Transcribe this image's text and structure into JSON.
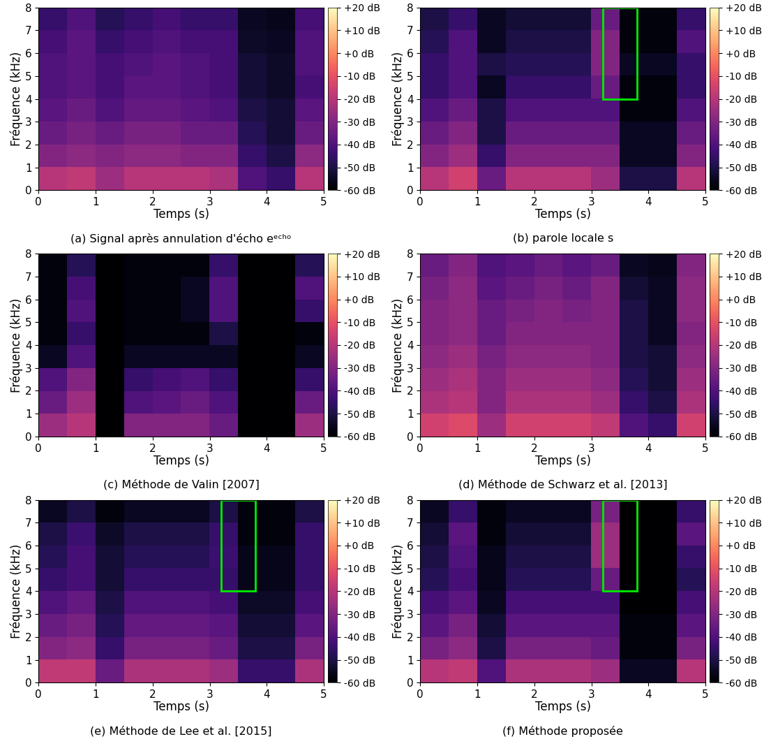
{
  "chart_data": [
    {
      "type": "heatmap",
      "title": "(a) Signal après annulation d'écho eᵉᶜʰᵒ",
      "x_label": "Temps (s)",
      "y_label": "Fréquence (kHz)",
      "xlim": [
        0,
        5
      ],
      "ylim": [
        0,
        8
      ],
      "xticks": [
        0,
        1,
        2,
        3,
        4,
        5
      ],
      "yticks": [
        0,
        1,
        2,
        3,
        4,
        5,
        6,
        7,
        8
      ],
      "color": "magma",
      "cells": [
        [
          -20,
          -18,
          -25,
          -20,
          -20,
          -20,
          -22,
          -40,
          -45,
          -20
        ],
        [
          -30,
          -28,
          -30,
          -28,
          -28,
          -30,
          -30,
          -45,
          -50,
          -28
        ],
        [
          -35,
          -32,
          -35,
          -32,
          -32,
          -35,
          -35,
          -48,
          -52,
          -35
        ],
        [
          -38,
          -35,
          -40,
          -36,
          -36,
          -38,
          -40,
          -50,
          -52,
          -38
        ],
        [
          -40,
          -38,
          -42,
          -38,
          -38,
          -40,
          -42,
          -52,
          -54,
          -42
        ],
        [
          -40,
          -38,
          -42,
          -40,
          -38,
          -40,
          -42,
          -52,
          -54,
          -40
        ],
        [
          -42,
          -38,
          -45,
          -42,
          -40,
          -42,
          -42,
          -54,
          -55,
          -40
        ],
        [
          -45,
          -40,
          -48,
          -45,
          -42,
          -45,
          -45,
          -55,
          -56,
          -42
        ]
      ],
      "colorbar_range": [
        -60,
        20
      ],
      "colorbar_ticks": [
        {
          "value": 20,
          "label": "+20 dB"
        },
        {
          "value": 10,
          "label": "+10 dB"
        },
        {
          "value": 0,
          "label": "+0 dB"
        },
        {
          "value": -10,
          "label": "-10 dB"
        },
        {
          "value": -20,
          "label": "-20 dB"
        },
        {
          "value": -30,
          "label": "-30 dB"
        },
        {
          "value": -40,
          "label": "-40 dB"
        },
        {
          "value": -50,
          "label": "-50 dB"
        },
        {
          "value": -60,
          "label": "-60 dB"
        }
      ]
    },
    {
      "type": "heatmap",
      "title": "(b) parole locale s",
      "x_label": "Temps (s)",
      "y_label": "Fréquence (kHz)",
      "xlim": [
        0,
        5
      ],
      "ylim": [
        0,
        8
      ],
      "xticks": [
        0,
        1,
        2,
        3,
        4,
        5
      ],
      "yticks": [
        0,
        1,
        2,
        3,
        4,
        5,
        6,
        7,
        8
      ],
      "color": "magma",
      "cells": [
        [
          -20,
          -15,
          -35,
          -20,
          -20,
          -20,
          -25,
          -50,
          -50,
          -20
        ],
        [
          -30,
          -25,
          -45,
          -30,
          -30,
          -30,
          -30,
          -55,
          -55,
          -30
        ],
        [
          -35,
          -30,
          -50,
          -35,
          -35,
          -35,
          -35,
          -55,
          -55,
          -35
        ],
        [
          -40,
          -35,
          -50,
          -40,
          -40,
          -40,
          -40,
          -58,
          -58,
          -40
        ],
        [
          -45,
          -40,
          -55,
          -45,
          -45,
          -45,
          -35,
          -58,
          -58,
          -45
        ],
        [
          -45,
          -40,
          -50,
          -48,
          -48,
          -48,
          -30,
          -55,
          -55,
          -45
        ],
        [
          -48,
          -40,
          -55,
          -50,
          -50,
          -50,
          -30,
          -58,
          -58,
          -40
        ],
        [
          -50,
          -45,
          -55,
          -52,
          -52,
          -52,
          -35,
          -58,
          -58,
          -45
        ]
      ],
      "highlight": {
        "x": [
          3.2,
          3.8
        ],
        "y": [
          4,
          8
        ],
        "color": "#00e000"
      },
      "colorbar_range": [
        -60,
        20
      ],
      "colorbar_ticks": [
        {
          "value": 20,
          "label": "+20 dB"
        },
        {
          "value": 10,
          "label": "+10 dB"
        },
        {
          "value": 0,
          "label": "+0 dB"
        },
        {
          "value": -10,
          "label": "-10 dB"
        },
        {
          "value": -20,
          "label": "-20 dB"
        },
        {
          "value": -30,
          "label": "-30 dB"
        },
        {
          "value": -40,
          "label": "-40 dB"
        },
        {
          "value": -50,
          "label": "-50 dB"
        },
        {
          "value": -60,
          "label": "-60 dB"
        }
      ]
    },
    {
      "type": "heatmap",
      "title": "(c) Méthode de Valin [2007]",
      "x_label": "Temps (s)",
      "y_label": "Fréquence (kHz)",
      "xlim": [
        0,
        5
      ],
      "ylim": [
        0,
        8
      ],
      "xticks": [
        0,
        1,
        2,
        3,
        4,
        5
      ],
      "yticks": [
        0,
        1,
        2,
        3,
        4,
        5,
        6,
        7,
        8
      ],
      "color": "magma",
      "cells": [
        [
          -25,
          -20,
          -60,
          -30,
          -30,
          -30,
          -35,
          -60,
          -60,
          -25
        ],
        [
          -35,
          -25,
          -60,
          -40,
          -38,
          -35,
          -40,
          -60,
          -60,
          -35
        ],
        [
          -40,
          -30,
          -60,
          -45,
          -42,
          -40,
          -45,
          -60,
          -60,
          -45
        ],
        [
          -55,
          -40,
          -60,
          -55,
          -55,
          -55,
          -55,
          -60,
          -60,
          -55
        ],
        [
          -58,
          -45,
          -60,
          -58,
          -58,
          -58,
          -50,
          -60,
          -60,
          -58
        ],
        [
          -58,
          -40,
          -60,
          -58,
          -58,
          -55,
          -40,
          -60,
          -60,
          -45
        ],
        [
          -58,
          -42,
          -60,
          -58,
          -58,
          -55,
          -40,
          -60,
          -60,
          -40
        ],
        [
          -58,
          -48,
          -60,
          -58,
          -58,
          -58,
          -45,
          -60,
          -60,
          -48
        ]
      ],
      "colorbar_range": [
        -60,
        20
      ],
      "colorbar_ticks": [
        {
          "value": 20,
          "label": "+20 dB"
        },
        {
          "value": 10,
          "label": "+10 dB"
        },
        {
          "value": 0,
          "label": "+0 dB"
        },
        {
          "value": -10,
          "label": "-10 dB"
        },
        {
          "value": -20,
          "label": "-20 dB"
        },
        {
          "value": -30,
          "label": "-30 dB"
        },
        {
          "value": -40,
          "label": "-40 dB"
        },
        {
          "value": -50,
          "label": "-50 dB"
        },
        {
          "value": -60,
          "label": "-60 dB"
        }
      ]
    },
    {
      "type": "heatmap",
      "title": "(d) Méthode de Schwarz et al. [2013]",
      "x_label": "Temps (s)",
      "y_label": "Fréquence (kHz)",
      "xlim": [
        0,
        5
      ],
      "ylim": [
        0,
        8
      ],
      "xticks": [
        0,
        1,
        2,
        3,
        4,
        5
      ],
      "yticks": [
        0,
        1,
        2,
        3,
        4,
        5,
        6,
        7,
        8
      ],
      "color": "magma",
      "cells": [
        [
          -15,
          -12,
          -25,
          -15,
          -15,
          -15,
          -18,
          -40,
          -45,
          -15
        ],
        [
          -22,
          -20,
          -30,
          -22,
          -22,
          -22,
          -25,
          -45,
          -50,
          -22
        ],
        [
          -25,
          -22,
          -30,
          -25,
          -25,
          -25,
          -28,
          -48,
          -52,
          -25
        ],
        [
          -28,
          -25,
          -32,
          -28,
          -28,
          -28,
          -30,
          -50,
          -52,
          -28
        ],
        [
          -30,
          -28,
          -35,
          -30,
          -30,
          -30,
          -30,
          -50,
          -55,
          -30
        ],
        [
          -30,
          -28,
          -35,
          -32,
          -30,
          -32,
          -30,
          -50,
          -55,
          -28
        ],
        [
          -32,
          -28,
          -38,
          -35,
          -32,
          -35,
          -30,
          -52,
          -55,
          -28
        ],
        [
          -35,
          -30,
          -40,
          -38,
          -35,
          -38,
          -35,
          -55,
          -56,
          -30
        ]
      ],
      "colorbar_range": [
        -60,
        20
      ],
      "colorbar_ticks": [
        {
          "value": 20,
          "label": "+20 dB"
        },
        {
          "value": 10,
          "label": "+10 dB"
        },
        {
          "value": 0,
          "label": "+0 dB"
        },
        {
          "value": -10,
          "label": "-10 dB"
        },
        {
          "value": -20,
          "label": "-20 dB"
        },
        {
          "value": -30,
          "label": "-30 dB"
        },
        {
          "value": -40,
          "label": "-40 dB"
        },
        {
          "value": -50,
          "label": "-50 dB"
        },
        {
          "value": -60,
          "label": "-60 dB"
        }
      ]
    },
    {
      "type": "heatmap",
      "title": "(e) Méthode de Lee et al. [2015]",
      "x_label": "Temps (s)",
      "y_label": "Fréquence (kHz)",
      "xlim": [
        0,
        5
      ],
      "ylim": [
        0,
        8
      ],
      "xticks": [
        0,
        1,
        2,
        3,
        4,
        5
      ],
      "yticks": [
        0,
        1,
        2,
        3,
        4,
        5,
        6,
        7,
        8
      ],
      "color": "magma",
      "cells": [
        [
          -18,
          -18,
          -35,
          -22,
          -22,
          -22,
          -25,
          -45,
          -45,
          -22
        ],
        [
          -30,
          -28,
          -45,
          -32,
          -32,
          -32,
          -35,
          -50,
          -50,
          -32
        ],
        [
          -35,
          -32,
          -48,
          -36,
          -36,
          -36,
          -38,
          -52,
          -52,
          -38
        ],
        [
          -40,
          -36,
          -50,
          -40,
          -40,
          -40,
          -42,
          -54,
          -54,
          -42
        ],
        [
          -45,
          -42,
          -52,
          -45,
          -45,
          -45,
          -45,
          -56,
          -56,
          -45
        ],
        [
          -48,
          -42,
          -52,
          -48,
          -48,
          -48,
          -44,
          -56,
          -56,
          -45
        ],
        [
          -50,
          -44,
          -54,
          -50,
          -50,
          -50,
          -45,
          -58,
          -58,
          -45
        ],
        [
          -55,
          -50,
          -58,
          -55,
          -55,
          -55,
          -50,
          -58,
          -58,
          -50
        ]
      ],
      "highlight": {
        "x": [
          3.2,
          3.8
        ],
        "y": [
          4,
          8
        ],
        "color": "#00e000"
      },
      "colorbar_range": [
        -60,
        20
      ],
      "colorbar_ticks": [
        {
          "value": 20,
          "label": "+20 dB"
        },
        {
          "value": 10,
          "label": "+10 dB"
        },
        {
          "value": 0,
          "label": "+0 dB"
        },
        {
          "value": -10,
          "label": "-10 dB"
        },
        {
          "value": -20,
          "label": "-20 dB"
        },
        {
          "value": -30,
          "label": "-30 dB"
        },
        {
          "value": -40,
          "label": "-40 dB"
        },
        {
          "value": -50,
          "label": "-50 dB"
        },
        {
          "value": -60,
          "label": "-60 dB"
        }
      ]
    },
    {
      "type": "heatmap",
      "title": "(f) Méthode proposée",
      "x_label": "Temps (s)",
      "y_label": "Fréquence (kHz)",
      "xlim": [
        0,
        5
      ],
      "ylim": [
        0,
        8
      ],
      "xticks": [
        0,
        1,
        2,
        3,
        4,
        5
      ],
      "yticks": [
        0,
        1,
        2,
        3,
        4,
        5,
        6,
        7,
        8
      ],
      "color": "magma",
      "cells": [
        [
          -20,
          -18,
          -40,
          -22,
          -22,
          -22,
          -25,
          -55,
          -55,
          -20
        ],
        [
          -32,
          -28,
          -50,
          -32,
          -32,
          -32,
          -35,
          -58,
          -58,
          -32
        ],
        [
          -38,
          -32,
          -52,
          -38,
          -38,
          -38,
          -38,
          -58,
          -58,
          -38
        ],
        [
          -42,
          -38,
          -55,
          -42,
          -42,
          -42,
          -42,
          -60,
          -60,
          -42
        ],
        [
          -48,
          -42,
          -56,
          -48,
          -48,
          -48,
          -35,
          -60,
          -60,
          -48
        ],
        [
          -50,
          -40,
          -56,
          -50,
          -50,
          -50,
          -25,
          -60,
          -60,
          -45
        ],
        [
          -52,
          -38,
          -58,
          -52,
          -52,
          -52,
          -25,
          -60,
          -60,
          -38
        ],
        [
          -55,
          -45,
          -58,
          -55,
          -55,
          -55,
          -32,
          -60,
          -60,
          -45
        ]
      ],
      "highlight": {
        "x": [
          3.2,
          3.8
        ],
        "y": [
          4,
          8
        ],
        "color": "#00e000"
      },
      "colorbar_range": [
        -60,
        20
      ],
      "colorbar_ticks": [
        {
          "value": 20,
          "label": "+20 dB"
        },
        {
          "value": 10,
          "label": "+10 dB"
        },
        {
          "value": 0,
          "label": "+0 dB"
        },
        {
          "value": -10,
          "label": "-10 dB"
        },
        {
          "value": -20,
          "label": "-20 dB"
        },
        {
          "value": -30,
          "label": "-30 dB"
        },
        {
          "value": -40,
          "label": "-40 dB"
        },
        {
          "value": -50,
          "label": "-50 dB"
        },
        {
          "value": -60,
          "label": "-60 dB"
        }
      ]
    }
  ]
}
